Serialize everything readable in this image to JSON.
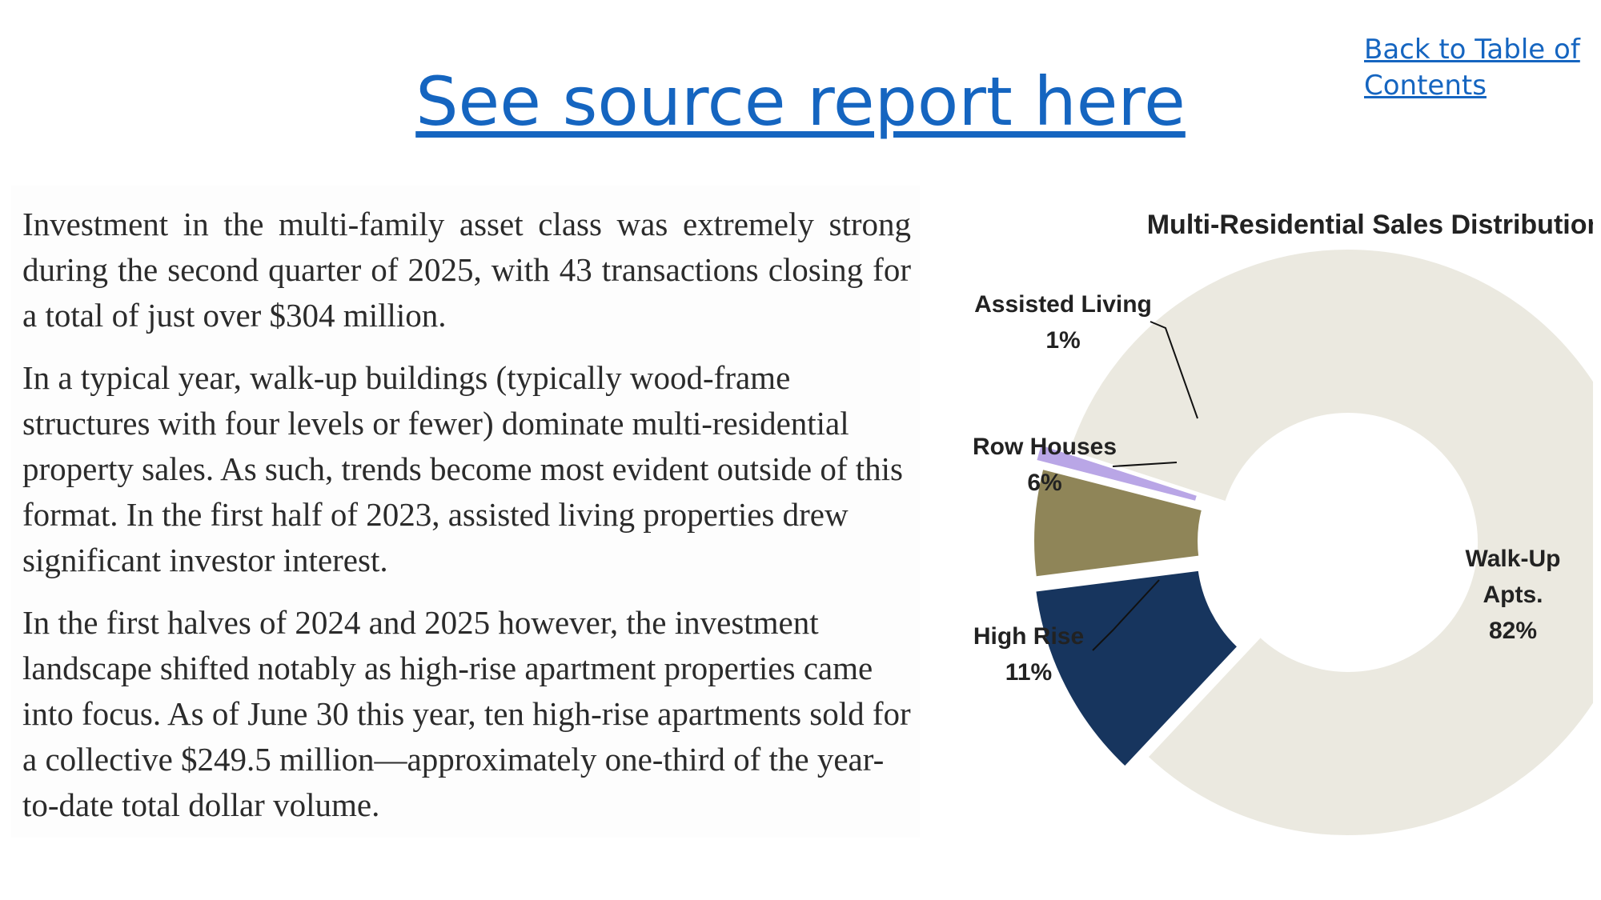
{
  "nav": {
    "back_link_line1": "Back to Table of",
    "back_link_line2": "Contents",
    "source_link": "See source report here"
  },
  "body_text": {
    "p1": "Investment in the multi-family asset class was extremely strong during the second quarter of 2025, with 43 transactions closing for a total of just over $304 million.",
    "p2": "In a typical year, walk-up buildings (typically wood-frame structures with four levels or fewer) dominate multi-residential property sales. As such, trends become most evident outside of this format. In the first half of 2023, assisted living properties drew significant investor interest.",
    "p3": "In the first halves of 2024 and 2025 however, the investment landscape shifted notably as high-rise apartment properties came into focus. As of June 30 this year, ten high-rise apartments sold for a collective $249.5 million—approximately one-third of the year-to-date total dollar volume."
  },
  "colors": {
    "link": "#1565c0",
    "walk_up": "#ebe9e0",
    "high_rise": "#17355e",
    "row_houses": "#8f8558",
    "assisted_living": "#b9a6e6"
  },
  "chart_data": {
    "type": "pie",
    "style": "donut",
    "title": "Multi-Residential Sales Distribution",
    "slices": [
      {
        "label": "Walk-Up Apts.",
        "value": 82,
        "value_label": "82%",
        "color": "#ebe9e0"
      },
      {
        "label": "High Rise",
        "value": 11,
        "value_label": "11%",
        "color": "#17355e"
      },
      {
        "label": "Row Houses",
        "value": 6,
        "value_label": "6%",
        "color": "#8f8558"
      },
      {
        "label": "Assisted Living",
        "value": 1,
        "value_label": "1%",
        "color": "#b9a6e6"
      }
    ]
  }
}
